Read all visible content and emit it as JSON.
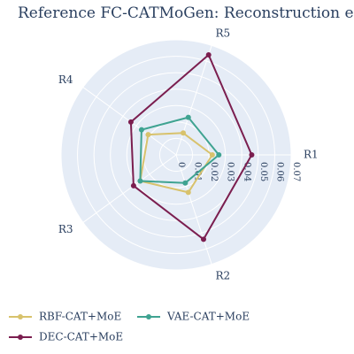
{
  "chart_data": {
    "type": "radar",
    "title": "Reference FC-CATMoGen: Reconstruction error",
    "axes": [
      "R1",
      "R2",
      "R3",
      "R4",
      "R5"
    ],
    "radial_ticks": [
      "0",
      "0.01",
      "0.02",
      "0.03",
      "0.04",
      "0.05",
      "0.06",
      "0.07"
    ],
    "radial_range": [
      0,
      0.07
    ],
    "grid": true,
    "legend_position": "bottom-left",
    "background_color": "#e5ecf6",
    "series": [
      {
        "name": "RBF-CAT+MoE",
        "color": "#d8c26c",
        "values": [
          0.022,
          0.024,
          0.027,
          0.021,
          0.014
        ]
      },
      {
        "name": "VAE-CAT+MoE",
        "color": "#3fa391",
        "values": [
          0.026,
          0.018,
          0.027,
          0.026,
          0.024
        ]
      },
      {
        "name": "DEC-CAT+MoE",
        "color": "#7b1e4f",
        "values": [
          0.046,
          0.054,
          0.032,
          0.034,
          0.064
        ]
      }
    ]
  }
}
